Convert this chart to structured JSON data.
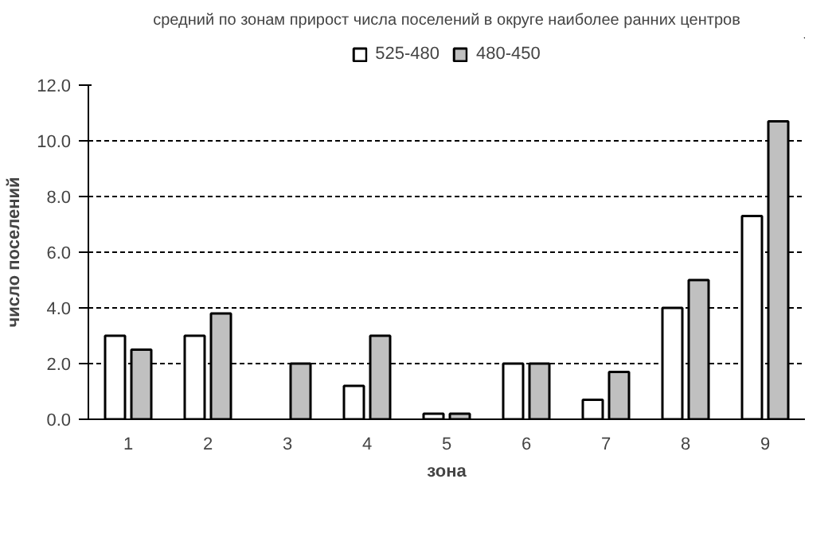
{
  "chart_data": {
    "type": "bar",
    "title": "средний по зонам прирост числа поселений в округе наиболее ранних центров",
    "xlabel": "зона",
    "ylabel": "число поселений",
    "categories": [
      "1",
      "2",
      "3",
      "4",
      "5",
      "6",
      "7",
      "8",
      "9"
    ],
    "series": [
      {
        "name": "525-480",
        "color": "#ffffff",
        "values": [
          3.0,
          3.0,
          null,
          1.2,
          0.2,
          2.0,
          0.7,
          4.0,
          7.3
        ]
      },
      {
        "name": "480-450",
        "color": "#c0c0c0",
        "values": [
          2.5,
          3.8,
          2.0,
          3.0,
          0.2,
          2.0,
          1.7,
          5.0,
          10.7
        ]
      }
    ],
    "ylim": [
      0,
      12
    ],
    "yticks": [
      {
        "value": 0,
        "label": "0.0"
      },
      {
        "value": 2,
        "label": "2.0"
      },
      {
        "value": 4,
        "label": "4.0"
      },
      {
        "value": 6,
        "label": "6.0"
      },
      {
        "value": 8,
        "label": "8.0"
      },
      {
        "value": 10,
        "label": "10.0"
      },
      {
        "value": 12,
        "label": "12.0"
      }
    ],
    "grid": "y",
    "legend": "top"
  }
}
